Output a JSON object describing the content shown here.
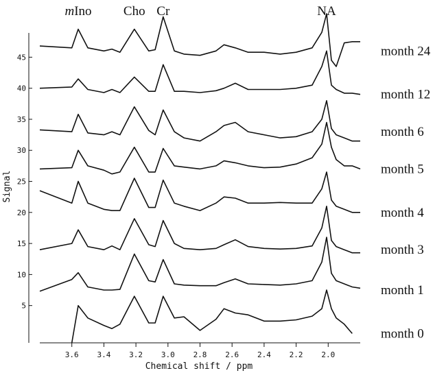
{
  "chart_data": {
    "type": "line",
    "title": "",
    "xlabel": "Chemical shift / ppm",
    "ylabel": "Signal",
    "x_ticks": [
      3.6,
      3.4,
      3.2,
      3.0,
      2.8,
      2.6,
      2.4,
      2.2,
      2.0
    ],
    "x_tick_labels": [
      "3.6",
      "3.4",
      "3.2",
      "3.0",
      "2.8",
      "2.6",
      "2.4",
      "2.2",
      "2.0"
    ],
    "y_ticks": [
      5,
      10,
      15,
      20,
      25,
      30,
      35,
      40,
      45
    ],
    "y_tick_labels": [
      "5",
      "10",
      "15",
      "20",
      "25",
      "30",
      "35",
      "40",
      "45"
    ],
    "xlim": [
      3.8,
      1.8
    ],
    "ylim": [
      -1,
      52
    ],
    "x_reversed": true,
    "grid": false,
    "peak_labels": [
      {
        "italic": "m",
        "text": "Ino",
        "ppm": 3.56
      },
      {
        "italic": "",
        "text": "Cho",
        "ppm": 3.21
      },
      {
        "italic": "",
        "text": "Cr",
        "ppm": 3.03
      },
      {
        "italic": "",
        "text": "NA",
        "ppm": 2.01
      }
    ],
    "series": [
      {
        "name": "month 0",
        "baseline": 0.5,
        "x": [
          3.8,
          3.6,
          3.56,
          3.5,
          3.4,
          3.35,
          3.3,
          3.21,
          3.12,
          3.08,
          3.03,
          2.96,
          2.9,
          2.8,
          2.7,
          2.65,
          2.58,
          2.5,
          2.4,
          2.3,
          2.2,
          2.1,
          2.04,
          2.01,
          1.98,
          1.95,
          1.9,
          1.85,
          1.8
        ],
        "values": [
          null,
          -1,
          5,
          3,
          1.8,
          1.3,
          2,
          6.5,
          2.2,
          2.2,
          6.5,
          3,
          3.2,
          1,
          2.8,
          4.5,
          3.8,
          3.5,
          2.5,
          2.5,
          2.7,
          3.3,
          4.5,
          7.5,
          4.5,
          3,
          2,
          0.5,
          null
        ]
      },
      {
        "name": "month 1",
        "baseline": 7.5,
        "x": [
          3.8,
          3.6,
          3.56,
          3.5,
          3.4,
          3.35,
          3.3,
          3.21,
          3.12,
          3.08,
          3.03,
          2.96,
          2.9,
          2.8,
          2.7,
          2.65,
          2.58,
          2.5,
          2.4,
          2.3,
          2.2,
          2.1,
          2.04,
          2.01,
          1.98,
          1.95,
          1.9,
          1.85,
          1.8
        ],
        "values": [
          7.3,
          9.2,
          10.3,
          8,
          7.5,
          7.5,
          7.6,
          13.3,
          9,
          8.8,
          12.4,
          8.5,
          8.3,
          8.2,
          8.2,
          8.7,
          9.3,
          8.5,
          8.4,
          8.3,
          8.5,
          9,
          12,
          16,
          10.2,
          9,
          8.5,
          8,
          7.8
        ]
      },
      {
        "name": "month 3",
        "baseline": 14,
        "x": [
          3.8,
          3.6,
          3.56,
          3.5,
          3.4,
          3.35,
          3.3,
          3.21,
          3.12,
          3.08,
          3.03,
          2.96,
          2.9,
          2.8,
          2.7,
          2.65,
          2.58,
          2.5,
          2.4,
          2.3,
          2.2,
          2.1,
          2.04,
          2.01,
          1.98,
          1.95,
          1.9,
          1.85,
          1.8
        ],
        "values": [
          14,
          15,
          17.2,
          14.5,
          14,
          14.6,
          14,
          19,
          14.8,
          14.5,
          18.7,
          15,
          14.2,
          14,
          14.2,
          14.8,
          15.6,
          14.5,
          14.2,
          14.1,
          14.2,
          14.6,
          17.5,
          21,
          15.5,
          14.5,
          14,
          13.5,
          13.5
        ]
      },
      {
        "name": "month 4",
        "baseline": 20,
        "x": [
          3.8,
          3.6,
          3.56,
          3.5,
          3.4,
          3.35,
          3.3,
          3.21,
          3.12,
          3.08,
          3.03,
          2.96,
          2.9,
          2.8,
          2.7,
          2.65,
          2.58,
          2.5,
          2.4,
          2.3,
          2.2,
          2.1,
          2.04,
          2.01,
          1.98,
          1.95,
          1.9,
          1.85,
          1.8
        ],
        "values": [
          23.5,
          21.5,
          25,
          21.5,
          20.5,
          20.3,
          20.3,
          25.5,
          20.8,
          20.8,
          25.2,
          21.5,
          21,
          20.3,
          21.5,
          22.5,
          22.3,
          21.5,
          21.5,
          21.6,
          21.5,
          21.5,
          23.8,
          26.5,
          22,
          21,
          20.5,
          20,
          20
        ]
      },
      {
        "name": "month 5",
        "baseline": 27,
        "x": [
          3.8,
          3.6,
          3.56,
          3.5,
          3.4,
          3.35,
          3.3,
          3.21,
          3.12,
          3.08,
          3.03,
          2.96,
          2.9,
          2.8,
          2.7,
          2.65,
          2.58,
          2.5,
          2.4,
          2.3,
          2.2,
          2.1,
          2.04,
          2.01,
          1.98,
          1.95,
          1.9,
          1.85,
          1.8
        ],
        "values": [
          27,
          27.2,
          30,
          27.5,
          26.8,
          26.2,
          26.5,
          30.5,
          26.5,
          26.5,
          30.3,
          27.5,
          27.3,
          27,
          27.5,
          28.3,
          28,
          27.5,
          27.2,
          27.3,
          27.8,
          28.8,
          31,
          34.5,
          30.5,
          28.5,
          27.5,
          27.5,
          27
        ]
      },
      {
        "name": "month 6",
        "baseline": 33,
        "x": [
          3.8,
          3.6,
          3.56,
          3.5,
          3.4,
          3.35,
          3.3,
          3.21,
          3.12,
          3.08,
          3.03,
          2.96,
          2.9,
          2.8,
          2.7,
          2.65,
          2.58,
          2.5,
          2.4,
          2.3,
          2.2,
          2.1,
          2.04,
          2.01,
          1.98,
          1.95,
          1.9,
          1.85,
          1.8
        ],
        "values": [
          33.3,
          33,
          35.8,
          32.8,
          32.5,
          33,
          32.5,
          37,
          33.2,
          32.5,
          36.5,
          33,
          32,
          31.5,
          33,
          34,
          34.5,
          33,
          32.5,
          32,
          32.2,
          33,
          35,
          38,
          33.5,
          32.5,
          32,
          31.5,
          31.5
        ]
      },
      {
        "name": "month 12",
        "baseline": 39,
        "x": [
          3.8,
          3.6,
          3.56,
          3.5,
          3.4,
          3.35,
          3.3,
          3.21,
          3.12,
          3.08,
          3.03,
          2.96,
          2.9,
          2.8,
          2.7,
          2.65,
          2.58,
          2.5,
          2.4,
          2.3,
          2.2,
          2.1,
          2.04,
          2.01,
          1.98,
          1.95,
          1.9,
          1.85,
          1.8
        ],
        "values": [
          40,
          40.2,
          41.5,
          39.8,
          39.3,
          39.8,
          39.3,
          41.8,
          39.5,
          39.5,
          43.8,
          39.5,
          39.5,
          39.3,
          39.6,
          40,
          40.8,
          39.8,
          39.8,
          39.8,
          40,
          40.5,
          43.5,
          46,
          40.5,
          39.8,
          39.2,
          39.2,
          39
        ]
      },
      {
        "name": "month 24",
        "baseline": 46,
        "x": [
          3.8,
          3.6,
          3.56,
          3.5,
          3.4,
          3.35,
          3.3,
          3.21,
          3.12,
          3.08,
          3.03,
          2.96,
          2.9,
          2.8,
          2.7,
          2.65,
          2.58,
          2.5,
          2.4,
          2.3,
          2.2,
          2.1,
          2.04,
          2.01,
          1.98,
          1.95,
          1.9,
          1.85,
          1.8
        ],
        "values": [
          46.8,
          46.5,
          49.5,
          46.5,
          46,
          46.3,
          45.8,
          49.5,
          46,
          46.2,
          51.5,
          46,
          45.5,
          45.3,
          46,
          47,
          46.5,
          45.8,
          45.8,
          45.5,
          45.8,
          46.5,
          49,
          52,
          44.5,
          43.5,
          47.3,
          47.5,
          47.5
        ]
      }
    ]
  }
}
